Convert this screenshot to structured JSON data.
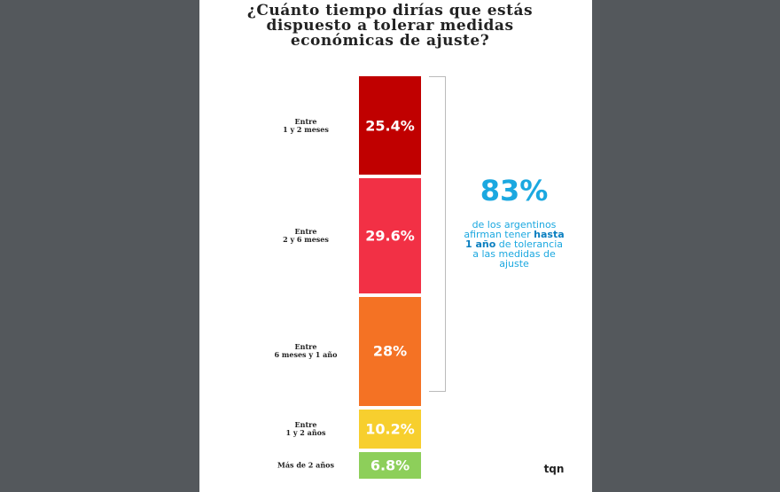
{
  "chart_data": {
    "type": "stacked-bar",
    "title": "¿Cuánto tiempo dirías que estás dispuesto a tolerar medidas económicas de ajuste?",
    "categories": [
      "Entre\n1 y 2 meses",
      "Entre\n2 y 6 meses",
      "Entre\n6 meses y 1 año",
      "Entre\n1 y 2 años",
      "Más de 2 años"
    ],
    "values": [
      25.4,
      29.6,
      28,
      10.2,
      6.8
    ],
    "value_labels": [
      "25.4%",
      "29.6%",
      "28%",
      "10.2%",
      "6.8%"
    ],
    "colors": [
      "#c00000",
      "#f23045",
      "#f47224",
      "#f7cf2e",
      "#8dcf5a"
    ],
    "annotation": {
      "value": 83,
      "value_label": "83%",
      "text_before": "de los argentinos afirman tener",
      "text_bold": "hasta 1 año",
      "text_after": "de tolerancia a las medidas de ajuste"
    },
    "logo": "tqn"
  }
}
